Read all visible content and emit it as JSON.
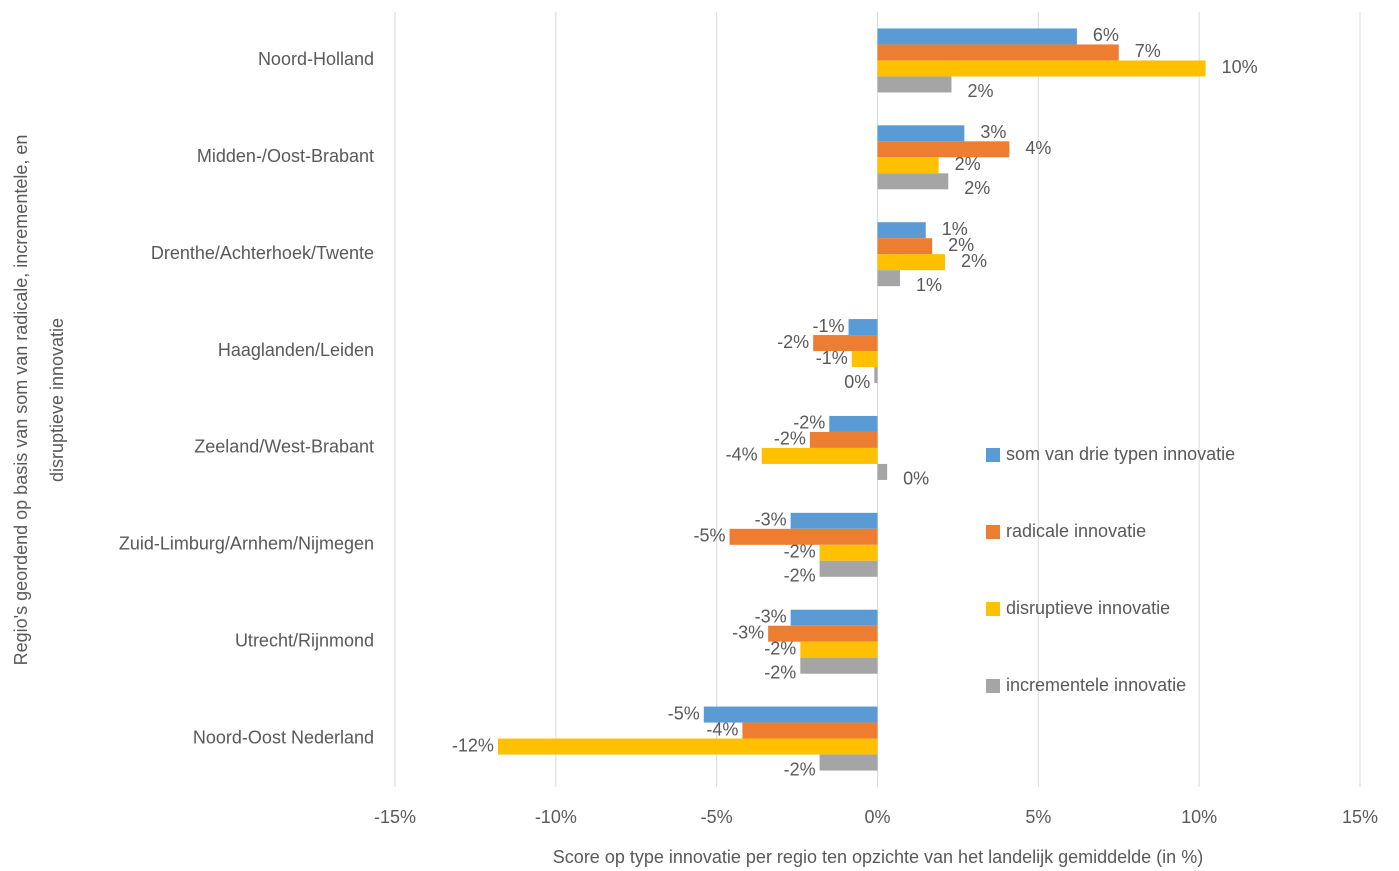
{
  "chart_data": {
    "type": "bar",
    "orientation": "horizontal",
    "xlabel": "Score op type innovatie per regio ten opzichte van het landelijk gemiddelde (in %)",
    "ylabel": [
      "Regio's geordend op basis van som van radicale, incrementele, en",
      "disruptieve innovatie"
    ],
    "categories": [
      "Noord-Holland",
      "Midden-/Oost-Brabant",
      "Drenthe/Achterhoek/Twente",
      "Haaglanden/Leiden",
      "Zeeland/West-Brabant",
      "Zuid-Limburg/Arnhem/Nijmegen",
      "Utrecht/Rijnmond",
      "Noord-Oost Nederland"
    ],
    "series": [
      {
        "name": "som van drie typen innovatie",
        "color": "#5b9bd5",
        "values": [
          6.2,
          2.7,
          1.5,
          -0.9,
          -1.5,
          -2.7,
          -2.7,
          -5.4
        ],
        "value_labels": [
          "6%",
          "3%",
          "1%",
          "-1%",
          "-2%",
          "-3%",
          "-3%",
          "-5%"
        ]
      },
      {
        "name": "radicale innovatie",
        "color": "#ed7d31",
        "values": [
          7.5,
          4.1,
          1.7,
          -2.0,
          -2.1,
          -4.6,
          -3.4,
          -4.2
        ],
        "value_labels": [
          "7%",
          "4%",
          "2%",
          "-2%",
          "-2%",
          "-5%",
          "-3%",
          "-4%"
        ]
      },
      {
        "name": "disruptieve innovatie",
        "color": "#ffc000",
        "values": [
          10.2,
          1.9,
          2.1,
          -0.8,
          -3.6,
          -1.8,
          -2.4,
          -11.8
        ],
        "value_labels": [
          "10%",
          "2%",
          "2%",
          "-1%",
          "-4%",
          "-2%",
          "-2%",
          "-12%"
        ]
      },
      {
        "name": "incrementele innovatie",
        "color": "#a5a5a5",
        "values": [
          2.3,
          2.2,
          0.7,
          -0.1,
          0.3,
          -1.8,
          -2.4,
          -1.8
        ],
        "value_labels": [
          "2%",
          "2%",
          "1%",
          "0%",
          "0%",
          "-2%",
          "-2%",
          "-2%"
        ]
      }
    ],
    "xlim": [
      -15,
      15
    ],
    "xticks": [
      {
        "value": -15,
        "label": "-15%"
      },
      {
        "value": -10,
        "label": "-10%"
      },
      {
        "value": -5,
        "label": "-5%"
      },
      {
        "value": 0,
        "label": "0%"
      },
      {
        "value": 5,
        "label": "5%"
      },
      {
        "value": 10,
        "label": "10%"
      },
      {
        "value": 15,
        "label": "15%"
      }
    ],
    "grid": true,
    "legend": "right"
  }
}
